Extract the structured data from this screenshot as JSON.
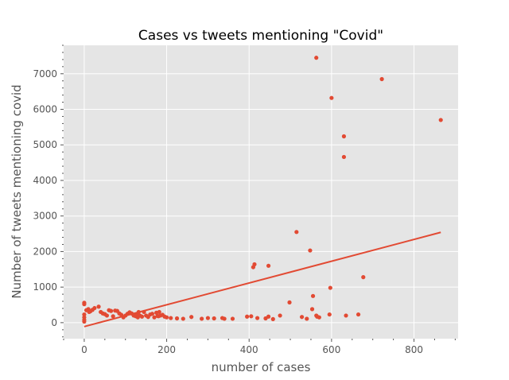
{
  "chart_data": {
    "type": "scatter",
    "title": "Cases vs tweets mentioning \"Covid\"",
    "xlabel": "number of cases",
    "ylabel": "Number of tweets mentioning covid",
    "xlim": [
      -50,
      907
    ],
    "ylim": [
      -450,
      7800
    ],
    "x_ticks": [
      0,
      200,
      400,
      600,
      800
    ],
    "y_ticks": [
      0,
      1000,
      2000,
      3000,
      4000,
      5000,
      6000,
      7000
    ],
    "grid": true,
    "legend": "none",
    "colors": {
      "points": "#E24A33",
      "trendline": "#E24A33",
      "plot_background": "#E5E5E5",
      "grid": "#ffffff",
      "text": "#555555"
    },
    "series": [
      {
        "points": [
          [
            0,
            560
          ],
          [
            0,
            520
          ],
          [
            0,
            230
          ],
          [
            0,
            150
          ],
          [
            0,
            80
          ],
          [
            0,
            30
          ],
          [
            5,
            350
          ],
          [
            10,
            380
          ],
          [
            12,
            300
          ],
          [
            15,
            320
          ],
          [
            20,
            360
          ],
          [
            25,
            410
          ],
          [
            35,
            450
          ],
          [
            40,
            300
          ],
          [
            45,
            260
          ],
          [
            50,
            240
          ],
          [
            55,
            200
          ],
          [
            60,
            350
          ],
          [
            65,
            330
          ],
          [
            70,
            180
          ],
          [
            75,
            340
          ],
          [
            80,
            330
          ],
          [
            85,
            260
          ],
          [
            90,
            220
          ],
          [
            95,
            150
          ],
          [
            100,
            200
          ],
          [
            105,
            250
          ],
          [
            110,
            290
          ],
          [
            115,
            260
          ],
          [
            120,
            200
          ],
          [
            125,
            180
          ],
          [
            128,
            230
          ],
          [
            130,
            150
          ],
          [
            132,
            300
          ],
          [
            135,
            200
          ],
          [
            140,
            170
          ],
          [
            145,
            300
          ],
          [
            150,
            200
          ],
          [
            155,
            160
          ],
          [
            160,
            230
          ],
          [
            165,
            250
          ],
          [
            170,
            150
          ],
          [
            175,
            280
          ],
          [
            178,
            190
          ],
          [
            180,
            180
          ],
          [
            182,
            300
          ],
          [
            185,
            200
          ],
          [
            190,
            220
          ],
          [
            195,
            170
          ],
          [
            200,
            150
          ],
          [
            210,
            130
          ],
          [
            225,
            120
          ],
          [
            240,
            110
          ],
          [
            260,
            160
          ],
          [
            285,
            110
          ],
          [
            300,
            130
          ],
          [
            315,
            120
          ],
          [
            335,
            130
          ],
          [
            340,
            110
          ],
          [
            360,
            110
          ],
          [
            395,
            170
          ],
          [
            405,
            180
          ],
          [
            420,
            130
          ],
          [
            440,
            120
          ],
          [
            447,
            170
          ],
          [
            458,
            100
          ],
          [
            410,
            1560
          ],
          [
            413,
            1640
          ],
          [
            447,
            1600
          ],
          [
            475,
            200
          ],
          [
            498,
            570
          ],
          [
            515,
            2550
          ],
          [
            528,
            160
          ],
          [
            540,
            110
          ],
          [
            548,
            2030
          ],
          [
            553,
            380
          ],
          [
            555,
            750
          ],
          [
            563,
            200
          ],
          [
            565,
            170
          ],
          [
            570,
            150
          ],
          [
            597,
            980
          ],
          [
            595,
            230
          ],
          [
            635,
            200
          ],
          [
            665,
            230
          ],
          [
            677,
            1280
          ],
          [
            563,
            7450
          ],
          [
            600,
            6320
          ],
          [
            630,
            5240
          ],
          [
            630,
            4660
          ],
          [
            722,
            6850
          ],
          [
            865,
            5700
          ]
        ]
      }
    ],
    "trendline": {
      "x": [
        0,
        865
      ],
      "y": [
        -110,
        2540
      ]
    }
  }
}
